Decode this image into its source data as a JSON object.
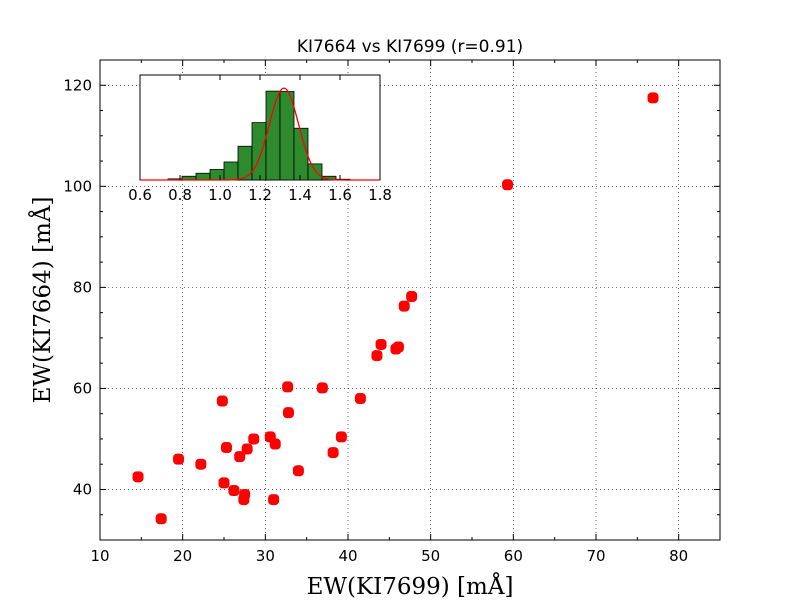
{
  "chart_data": [
    {
      "type": "scatter",
      "title": "KI7664 vs KI7699 (r=0.91)",
      "xlabel": "EW(KI7699) [mÅ]",
      "ylabel": "EW(KI7664) [mÅ]",
      "xlim": [
        10,
        85
      ],
      "ylim": [
        30,
        125
      ],
      "xticks": [
        10,
        20,
        30,
        40,
        50,
        60,
        70,
        80
      ],
      "yticks": [
        40,
        60,
        80,
        100,
        120
      ],
      "grid": true,
      "marker_color": "#ff0000",
      "series": [
        {
          "points": [
            [
              14.6,
              42.5
            ],
            [
              17.4,
              34.2
            ],
            [
              19.5,
              46.0
            ],
            [
              22.2,
              45.0
            ],
            [
              24.8,
              57.5
            ],
            [
              25.0,
              41.3
            ],
            [
              25.3,
              48.3
            ],
            [
              26.2,
              39.8
            ],
            [
              26.9,
              46.5
            ],
            [
              27.4,
              38.0
            ],
            [
              27.5,
              39.0
            ],
            [
              27.8,
              48.0
            ],
            [
              28.6,
              50.0
            ],
            [
              30.6,
              50.4
            ],
            [
              31.0,
              38.0
            ],
            [
              31.2,
              49.0
            ],
            [
              32.7,
              60.3
            ],
            [
              32.8,
              55.2
            ],
            [
              34.0,
              43.7
            ],
            [
              36.9,
              60.1
            ],
            [
              38.2,
              47.3
            ],
            [
              39.2,
              50.4
            ],
            [
              41.5,
              58.0
            ],
            [
              43.5,
              66.5
            ],
            [
              44.0,
              68.7
            ],
            [
              45.8,
              67.8
            ],
            [
              46.1,
              68.2
            ],
            [
              46.8,
              76.3
            ],
            [
              47.7,
              78.2
            ],
            [
              59.3,
              100.3
            ],
            [
              76.9,
              117.5
            ]
          ]
        }
      ]
    },
    {
      "type": "bar",
      "inset": true,
      "xlim": [
        0.6,
        1.8
      ],
      "xticks": [
        "0.6",
        "0.8",
        "1.0",
        "1.2",
        "1.4",
        "1.6",
        "1.8"
      ],
      "bin_edges": [
        0.6,
        0.67,
        0.74,
        0.81,
        0.88,
        0.95,
        1.02,
        1.09,
        1.16,
        1.23,
        1.3,
        1.37,
        1.44,
        1.51,
        1.58,
        1.65,
        1.72,
        1.79
      ],
      "values": [
        0,
        0,
        0.3,
        1.0,
        1.8,
        2.8,
        4.8,
        9.0,
        15.3,
        23.7,
        23.6,
        13.8,
        4.3,
        1.0,
        0.2,
        0,
        0
      ],
      "ylim": [
        0,
        28
      ],
      "bar_color": "#2d8a2d",
      "fit_color": "#ff0000",
      "fit": {
        "type": "gaussian",
        "mean": 1.32,
        "sigma": 0.073,
        "amplitude": 24.5
      }
    }
  ]
}
